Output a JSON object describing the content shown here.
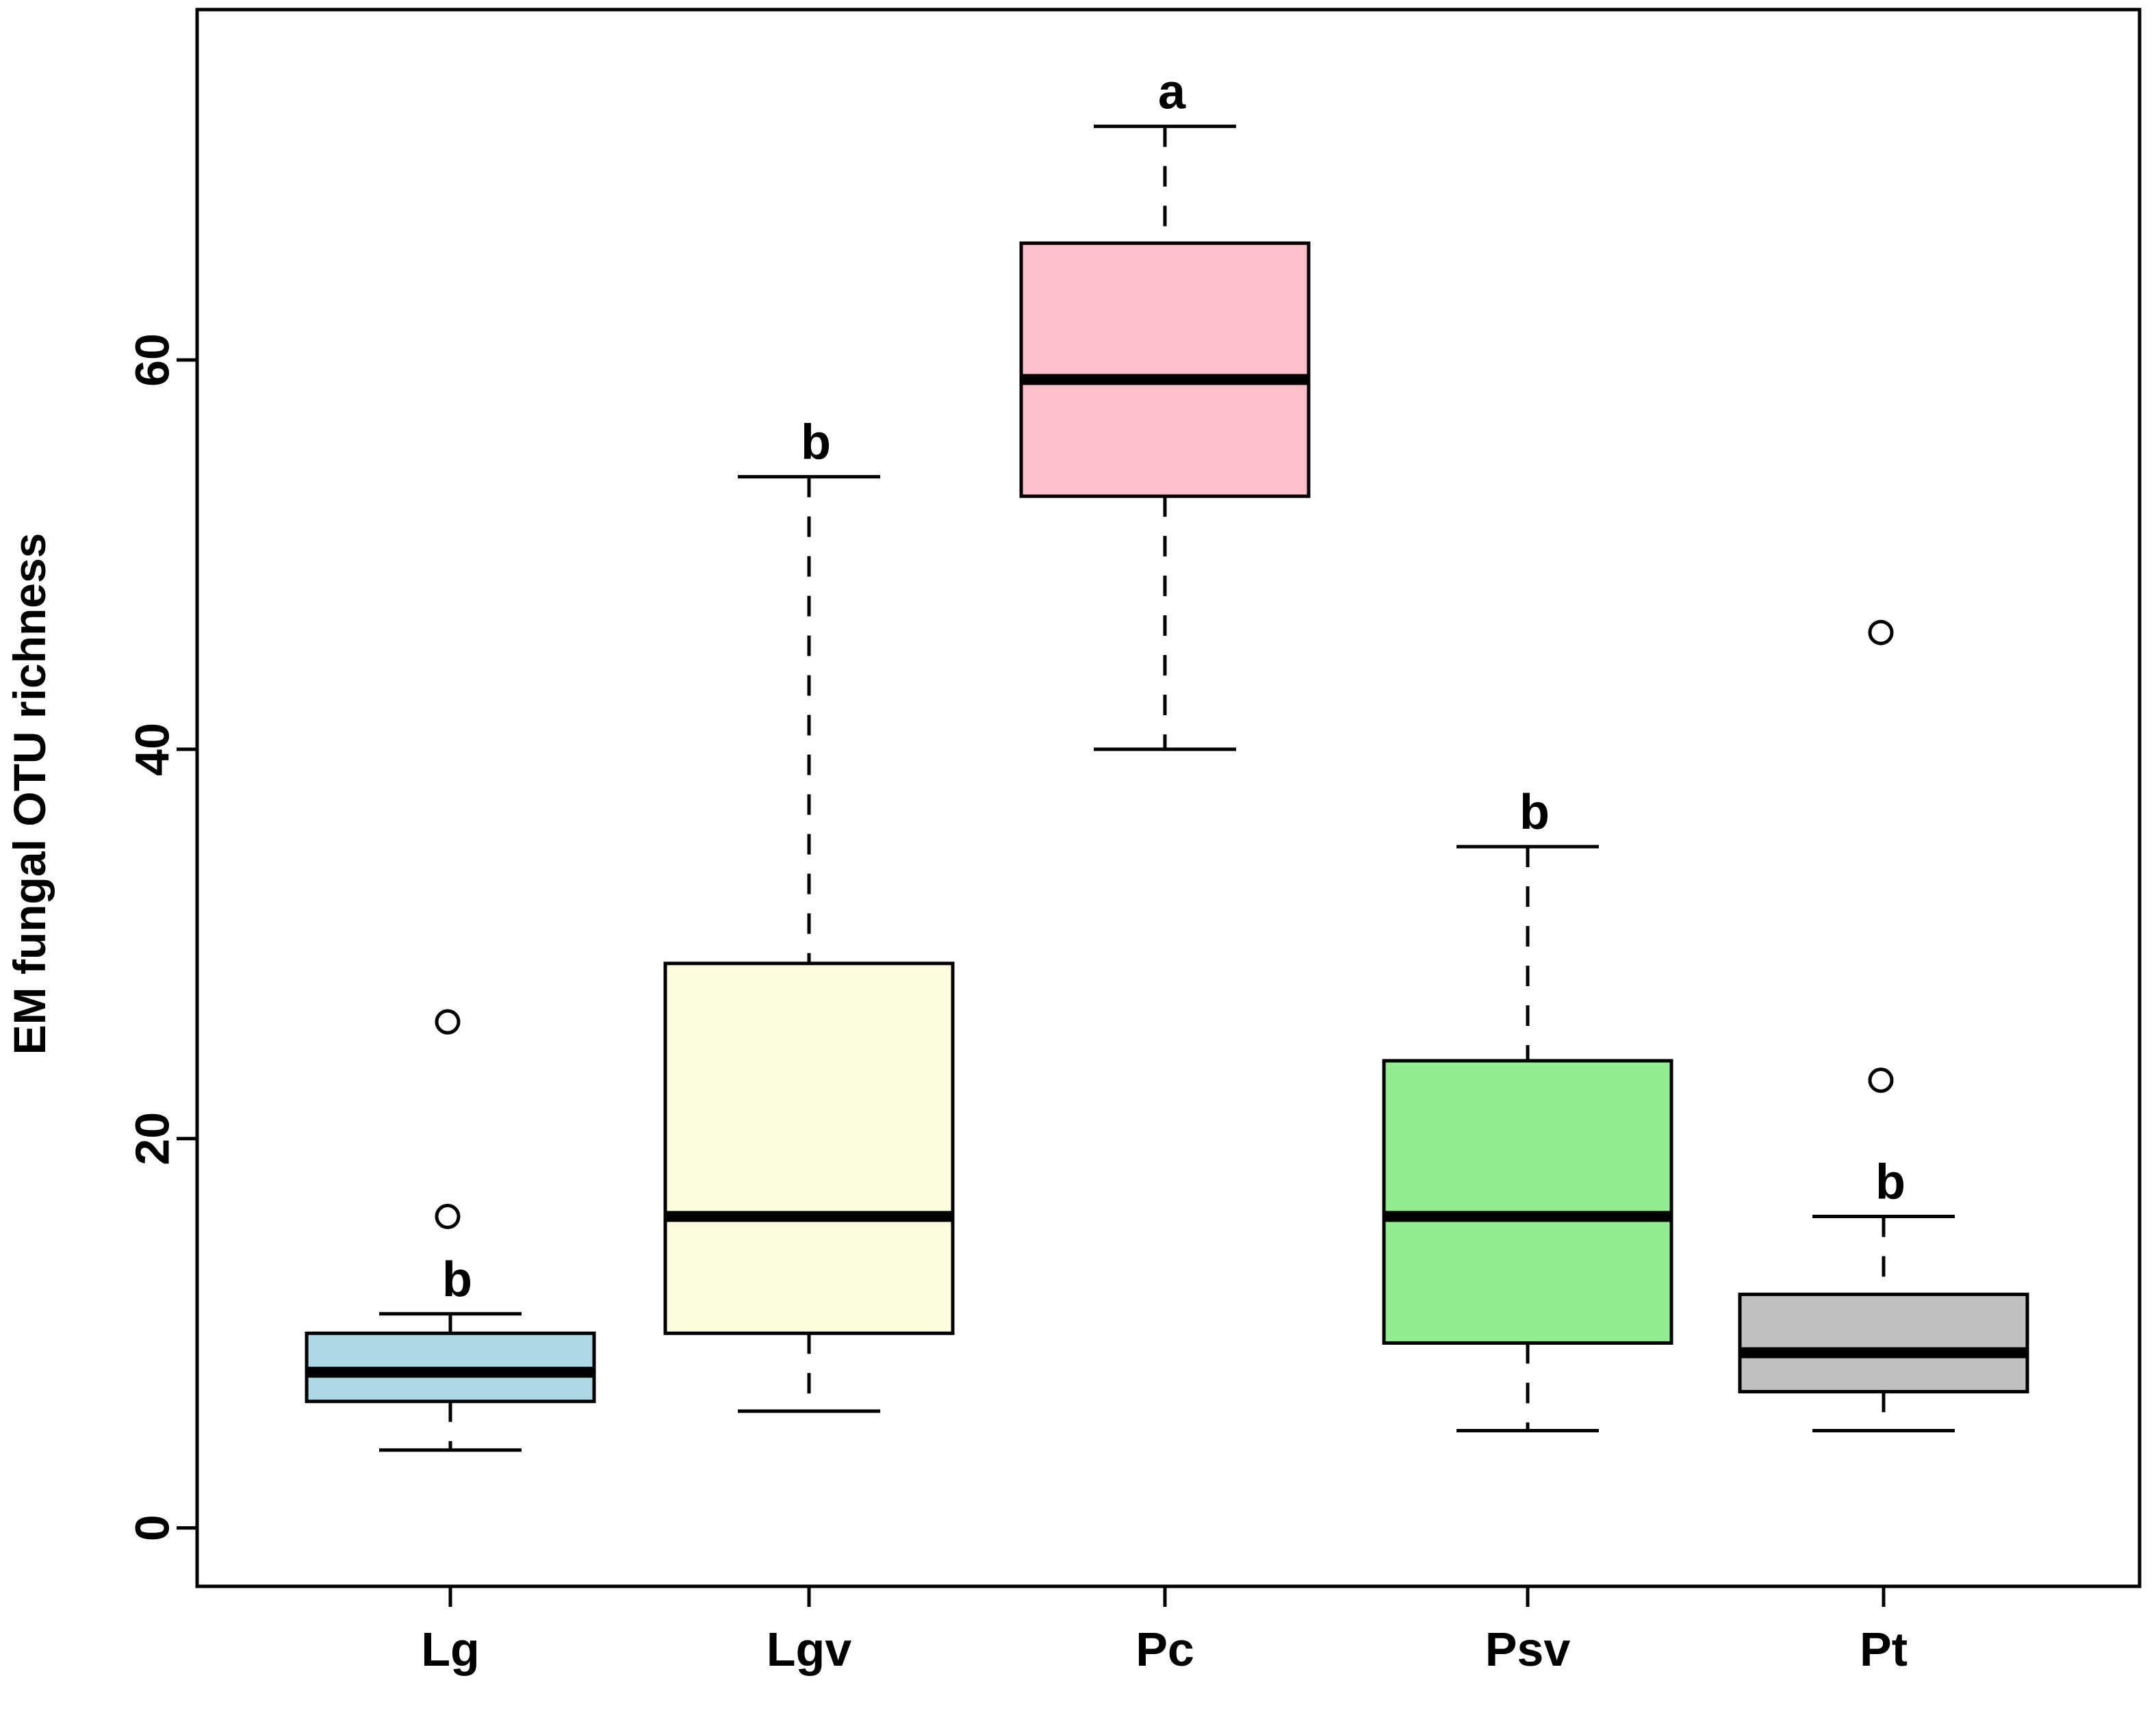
{
  "chart_data": {
    "type": "boxplot",
    "title": "",
    "xlabel": "",
    "ylabel": "EM fungal OTU richness",
    "ylim": [
      -3,
      78
    ],
    "yticks": [
      0,
      20,
      40,
      60
    ],
    "grid": false,
    "legend": "none",
    "groups": [
      {
        "name": "Lg",
        "color": "#add8e6",
        "lower_whisker": 4,
        "q1": 6.5,
        "median": 8,
        "q3": 10,
        "upper_whisker": 11,
        "outliers": [
          16,
          26
        ],
        "letter": "b"
      },
      {
        "name": "Lgv",
        "color": "#fffde0",
        "lower_whisker": 6,
        "q1": 10,
        "median": 16,
        "q3": 29,
        "upper_whisker": 54,
        "outliers": [],
        "letter": "b"
      },
      {
        "name": "Pc",
        "color": "#ffc0cb",
        "lower_whisker": 40,
        "q1": 53,
        "median": 59,
        "q3": 66,
        "upper_whisker": 72,
        "outliers": [],
        "letter": "a"
      },
      {
        "name": "Psv",
        "color": "#90ee90",
        "lower_whisker": 5,
        "q1": 9.5,
        "median": 16,
        "q3": 24,
        "upper_whisker": 35,
        "outliers": [],
        "letter": "b"
      },
      {
        "name": "Pt",
        "color": "#c0c0c0",
        "lower_whisker": 5,
        "q1": 7,
        "median": 9,
        "q3": 12,
        "upper_whisker": 16,
        "outliers": [
          23,
          46
        ],
        "letter": "b"
      }
    ]
  }
}
